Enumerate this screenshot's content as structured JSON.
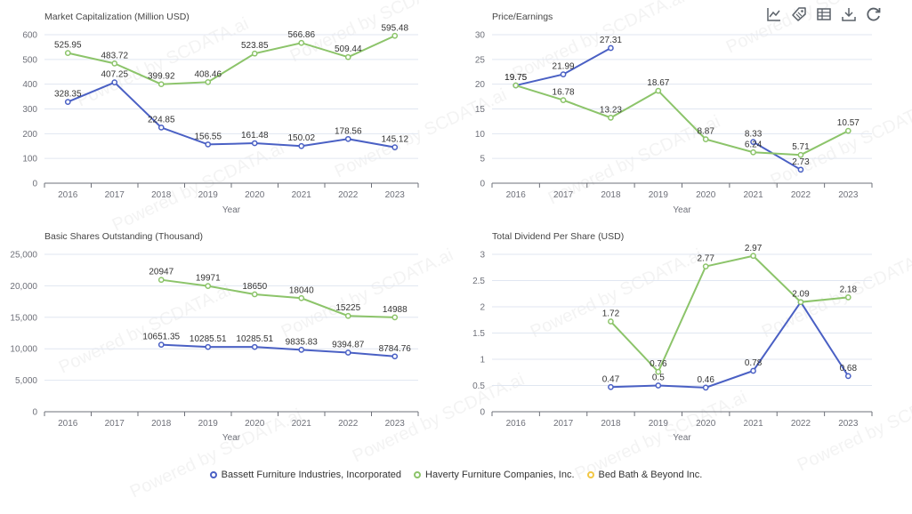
{
  "toolbar": {
    "icons": [
      "line-chart-icon",
      "tag-icon",
      "data-view-icon",
      "download-icon",
      "refresh-icon"
    ],
    "color": "#5a6169"
  },
  "legend": {
    "items": [
      {
        "label": "Bassett Furniture Industries, Incorporated",
        "color": "#4a60c4"
      },
      {
        "label": "Haverty Furniture Companies, Inc.",
        "color": "#8cc46a"
      },
      {
        "label": "Bed Bath & Beyond Inc.",
        "color": "#f2c744"
      }
    ]
  },
  "watermark": "Powered by SCDATA.ai",
  "chart_data": [
    {
      "type": "line",
      "title": "Market Capitalization (Million USD)",
      "xlabel": "Year",
      "ylabel": "",
      "categories": [
        "2016",
        "2017",
        "2018",
        "2019",
        "2020",
        "2021",
        "2022",
        "2023"
      ],
      "ylim": [
        0,
        600
      ],
      "yticks": [
        "0",
        "100",
        "200",
        "300",
        "400",
        "500",
        "600"
      ],
      "series": [
        {
          "name": "Bassett Furniture Industries, Incorporated",
          "values": [
            328.35,
            407.25,
            224.85,
            156.55,
            161.48,
            150.02,
            178.56,
            145.12
          ],
          "labels": [
            "328.35",
            "407.25",
            "224.85",
            "156.55",
            "161.48",
            "150.02",
            "178.56",
            "145.12"
          ],
          "color": "#4a60c4"
        },
        {
          "name": "Haverty Furniture Companies, Inc.",
          "values": [
            525.95,
            483.72,
            399.92,
            408.46,
            523.85,
            566.86,
            509.44,
            595.48
          ],
          "labels": [
            "525.95",
            "483.72",
            "399.92",
            "408.46",
            "523.85",
            "566.86",
            "509.44",
            "595.48"
          ],
          "color": "#8cc46a"
        }
      ]
    },
    {
      "type": "line",
      "title": "Price/Earnings",
      "xlabel": "Year",
      "ylabel": "",
      "categories": [
        "2016",
        "2017",
        "2018",
        "2019",
        "2020",
        "2021",
        "2022",
        "2023"
      ],
      "ylim": [
        0,
        30
      ],
      "yticks": [
        "0",
        "5",
        "10",
        "15",
        "20",
        "25",
        "30"
      ],
      "series": [
        {
          "name": "Bassett Furniture Industries, Incorporated",
          "values": [
            19.75,
            21.99,
            27.31,
            null,
            null,
            8.33,
            2.73,
            null
          ],
          "labels": [
            "19.75",
            "21.99",
            "27.31",
            "",
            "",
            "8.33",
            "2.73",
            ""
          ],
          "color": "#4a60c4"
        },
        {
          "name": "Haverty Furniture Companies, Inc.",
          "values": [
            19.75,
            16.78,
            13.23,
            18.67,
            8.87,
            6.24,
            5.71,
            10.57
          ],
          "labels": [
            "19.75",
            "16.78",
            "13.23",
            "18.67",
            "8.87",
            "6.24",
            "5.71",
            "10.57"
          ],
          "color": "#8cc46a"
        }
      ]
    },
    {
      "type": "line",
      "title": "Basic Shares Outstanding (Thousand)",
      "xlabel": "Year",
      "ylabel": "",
      "categories": [
        "2016",
        "2017",
        "2018",
        "2019",
        "2020",
        "2021",
        "2022",
        "2023"
      ],
      "ylim": [
        0,
        25000
      ],
      "yticks": [
        "0",
        "5,000",
        "10,000",
        "15,000",
        "20,000",
        "25,000"
      ],
      "series": [
        {
          "name": "Bassett Furniture Industries, Incorporated",
          "values": [
            null,
            null,
            10651.35,
            10285.51,
            10285.51,
            9835.83,
            9394.87,
            8784.76
          ],
          "labels": [
            "",
            "",
            "10651.35",
            "10285.51",
            "10285.51",
            "9835.83",
            "9394.87",
            "8784.76"
          ],
          "color": "#4a60c4"
        },
        {
          "name": "Haverty Furniture Companies, Inc.",
          "values": [
            null,
            null,
            20947,
            19971,
            18650,
            18040,
            15225,
            14988
          ],
          "labels": [
            "",
            "",
            "20947",
            "19971",
            "18650",
            "18040",
            "15225",
            "14988"
          ],
          "color": "#8cc46a"
        }
      ]
    },
    {
      "type": "line",
      "title": "Total Dividend Per Share (USD)",
      "xlabel": "Year",
      "ylabel": "",
      "categories": [
        "2016",
        "2017",
        "2018",
        "2019",
        "2020",
        "2021",
        "2022",
        "2023"
      ],
      "ylim": [
        0,
        3
      ],
      "yticks": [
        "0",
        "0.5",
        "1",
        "1.5",
        "2",
        "2.5",
        "3"
      ],
      "series": [
        {
          "name": "Bassett Furniture Industries, Incorporated",
          "values": [
            null,
            null,
            0.47,
            0.5,
            0.46,
            0.78,
            2.09,
            0.68
          ],
          "labels": [
            "",
            "",
            "0.47",
            "0.5",
            "0.46",
            "0.78",
            "",
            "0.68"
          ],
          "color": "#4a60c4"
        },
        {
          "name": "Haverty Furniture Companies, Inc.",
          "values": [
            null,
            null,
            1.72,
            0.76,
            2.77,
            2.97,
            2.09,
            2.18
          ],
          "labels": [
            "",
            "",
            "1.72",
            "0.76",
            "2.77",
            "2.97",
            "2.09",
            "2.18"
          ],
          "color": "#8cc46a"
        }
      ]
    }
  ]
}
